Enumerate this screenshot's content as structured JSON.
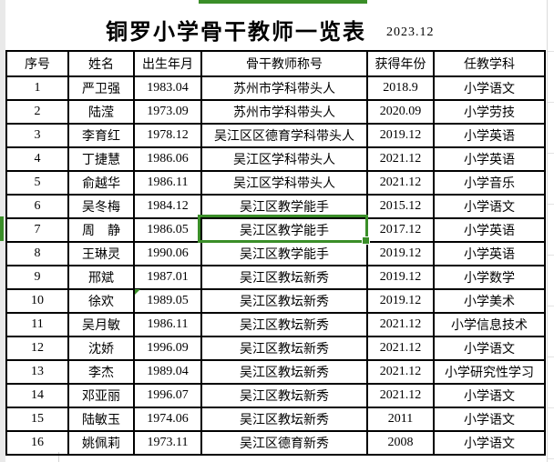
{
  "page": {
    "title": "铜罗小学骨干教师一览表",
    "date": "2023.12"
  },
  "colors": {
    "selection_green": "#3a8e28",
    "table_border": "#000000",
    "gridline_gray": "#dcdcdc",
    "margin_gray": "#e9e9e9"
  },
  "table": {
    "columns": [
      "序号",
      "姓名",
      "出生年月",
      "骨干教师称号",
      "获得年份",
      "任教学科"
    ],
    "column_keys": [
      "no",
      "name",
      "birth",
      "title",
      "year",
      "subject"
    ],
    "rows": [
      [
        "1",
        "严卫强",
        "1983.04",
        "苏州市学科带头人",
        "2018.9",
        "小学语文"
      ],
      [
        "2",
        "陆滢",
        "1973.09",
        "苏州市学科带头人",
        "2020.09",
        "小学劳技"
      ],
      [
        "3",
        "李育红",
        "1978.12",
        "吴江区区德育学科带头人",
        "2019.12",
        "小学英语"
      ],
      [
        "4",
        "丁捷慧",
        "1986.06",
        "吴江区学科带头人",
        "2021.12",
        "小学英语"
      ],
      [
        "5",
        "俞越华",
        "1986.11",
        "吴江区学科带头人",
        "2021.12",
        "小学音乐"
      ],
      [
        "6",
        "吴冬梅",
        "1984.12",
        "吴江区教学能手",
        "2015.12",
        "小学语文"
      ],
      [
        "7",
        "周　静",
        "1986.05",
        "吴江区教学能手",
        "2017.12",
        "小学英语"
      ],
      [
        "8",
        "王琳灵",
        "1990.06",
        "吴江区教学能手",
        "2019.12",
        "小学英语"
      ],
      [
        "9",
        "邢斌",
        "1987.01",
        "吴江区教坛新秀",
        "2019.12",
        "小学数学"
      ],
      [
        "10",
        "徐欢",
        "1989.05",
        "吴江区教坛新秀",
        "2019.12",
        "小学美术"
      ],
      [
        "11",
        "吴月敏",
        "1986.11",
        "吴江区教坛新秀",
        "2021.12",
        "小学信息技术"
      ],
      [
        "12",
        "沈娇",
        "1996.09",
        "吴江区教坛新秀",
        "2021.12",
        "小学语文"
      ],
      [
        "13",
        "李杰",
        "1989.04",
        "吴江区教坛新秀",
        "2021.12",
        "小学研究性学习"
      ],
      [
        "14",
        "邓亚丽",
        "1996.07",
        "吴江区教坛新秀",
        "2021.12",
        "小学语文"
      ],
      [
        "15",
        "陆敏玉",
        "1974.06",
        "吴江区教坛新秀",
        "2011",
        "小学语文"
      ],
      [
        "16",
        "姚佩莉",
        "1973.11",
        "吴江区德育新秀",
        "2008",
        "小学语文"
      ]
    ],
    "selected_cell": {
      "row": "7",
      "column": "骨干教师称号",
      "value": "吴江区教学能手"
    },
    "flagged_cell": {
      "row": "10",
      "column": "出生年月",
      "value": "1989.05"
    }
  }
}
